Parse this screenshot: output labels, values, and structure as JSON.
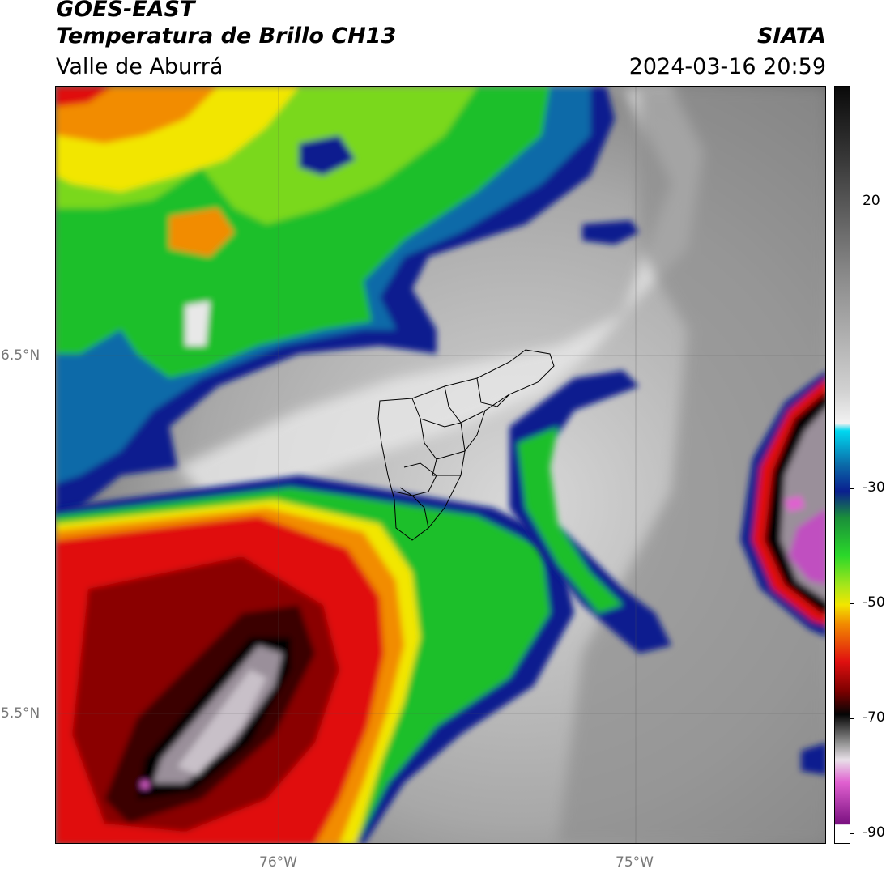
{
  "header": {
    "satellite": "GOES-EAST",
    "product": "Temperatura de Brillo CH13",
    "region": "Valle de Aburrá",
    "organization": "SIATA",
    "datetime": "2024-03-16 20:59"
  },
  "axes": {
    "lat_labels": [
      "6.5°N",
      "5.5°N"
    ],
    "lon_labels": [
      "76°W",
      "75°W"
    ]
  },
  "colorbar": {
    "ticks": [
      "20",
      "-30",
      "-50",
      "-70",
      "-90"
    ],
    "colors": {
      "warm_gray_top": "#1a1a1a",
      "light": "#f2f2f2",
      "cyan": "#00c8e0",
      "blue": "#0a1f8f",
      "green": "#1fbf2a",
      "yellow": "#f2e600",
      "orange": "#f28c00",
      "red": "#e01010",
      "dark_red": "#3a0000",
      "black": "#050505",
      "magenta": "#c050c0"
    }
  }
}
